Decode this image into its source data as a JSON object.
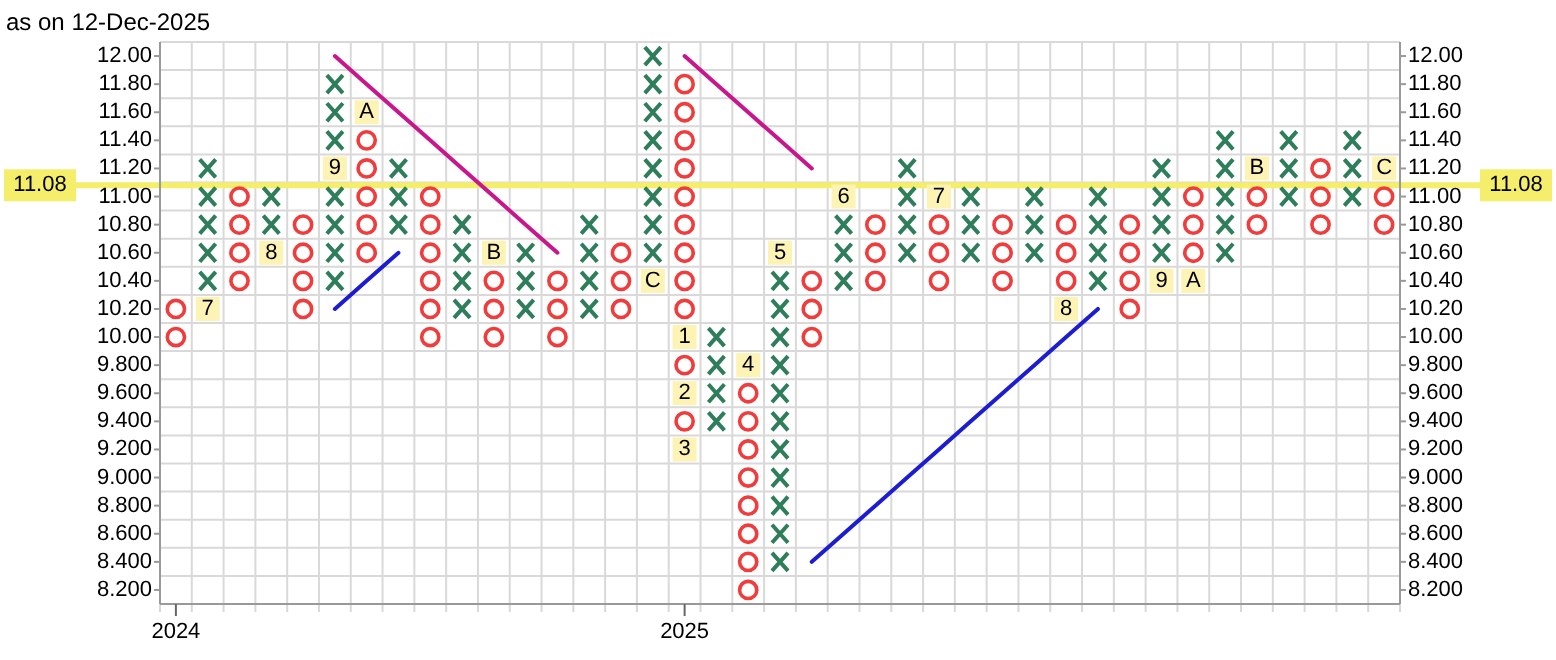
{
  "chart_data": {
    "type": "scatter",
    "title": "as on 12-Dec-2025",
    "categories": [
      "2024",
      null,
      null,
      null,
      null,
      null,
      null,
      null,
      null,
      null,
      null,
      null,
      null,
      null,
      null,
      null,
      "2025",
      null,
      null,
      null,
      null,
      null,
      null,
      null,
      null,
      null,
      null,
      null,
      null,
      null,
      null,
      null,
      null,
      null,
      null,
      null,
      null,
      null,
      null
    ],
    "ylim": [
      8.1,
      12.1
    ],
    "yticks": [
      {
        "value": 8.2,
        "label": "8.200"
      },
      {
        "value": 8.4,
        "label": "8.400"
      },
      {
        "value": 8.6,
        "label": "8.600"
      },
      {
        "value": 8.8,
        "label": "8.800"
      },
      {
        "value": 9.0,
        "label": "9.000"
      },
      {
        "value": 9.2,
        "label": "9.200"
      },
      {
        "value": 9.4,
        "label": "9.400"
      },
      {
        "value": 9.6,
        "label": "9.600"
      },
      {
        "value": 9.8,
        "label": "9.800"
      },
      {
        "value": 10.0,
        "label": "10.00"
      },
      {
        "value": 10.2,
        "label": "10.20"
      },
      {
        "value": 10.4,
        "label": "10.40"
      },
      {
        "value": 10.6,
        "label": "10.60"
      },
      {
        "value": 10.8,
        "label": "10.80"
      },
      {
        "value": 11.0,
        "label": "11.00"
      },
      {
        "value": 11.2,
        "label": "11.20"
      },
      {
        "value": 11.4,
        "label": "11.40"
      },
      {
        "value": 11.6,
        "label": "11.60"
      },
      {
        "value": 11.8,
        "label": "11.80"
      },
      {
        "value": 12.0,
        "label": "12.00"
      }
    ],
    "y2lim": [
      8.1,
      12.1
    ],
    "y2ticks": [
      {
        "value": 8.2,
        "label": "8.200"
      },
      {
        "value": 8.4,
        "label": "8.400"
      },
      {
        "value": 8.6,
        "label": "8.600"
      },
      {
        "value": 8.8,
        "label": "8.800"
      },
      {
        "value": 9.0,
        "label": "9.000"
      },
      {
        "value": 9.2,
        "label": "9.200"
      },
      {
        "value": 9.4,
        "label": "9.400"
      },
      {
        "value": 9.6,
        "label": "9.600"
      },
      {
        "value": 9.8,
        "label": "9.800"
      },
      {
        "value": 10.0,
        "label": "10.00"
      },
      {
        "value": 10.2,
        "label": "10.20"
      },
      {
        "value": 10.4,
        "label": "10.40"
      },
      {
        "value": 10.6,
        "label": "10.60"
      },
      {
        "value": 10.8,
        "label": "10.80"
      },
      {
        "value": 11.0,
        "label": "11.00"
      },
      {
        "value": 11.2,
        "label": "11.20"
      },
      {
        "value": 11.4,
        "label": "11.40"
      },
      {
        "value": 11.6,
        "label": "11.60"
      },
      {
        "value": 11.8,
        "label": "11.80"
      },
      {
        "value": 12.0,
        "label": "12.00"
      }
    ],
    "grid": true,
    "annotations": [
      "7",
      "8",
      "9",
      "A",
      "B",
      "C",
      "1",
      "4",
      "5",
      "6",
      "7",
      "8",
      "9",
      "A",
      "B",
      "C",
      "2",
      "3"
    ],
    "ref_lines": [
      {
        "axis": "y",
        "value": 11.08,
        "label": "11.08",
        "color": "#f5ee6a"
      }
    ],
    "series": [
      {
        "marker": "cross",
        "color": "#2e7d5b",
        "values": [
          null,
          10.4,
          null,
          10.8,
          null,
          10.4,
          null,
          10.8,
          null,
          10.2,
          null,
          10.2,
          null,
          10.2,
          null,
          10.6,
          null,
          9.4,
          null,
          8.4,
          null,
          10.4,
          null,
          10.6,
          null,
          10.6,
          null,
          10.6,
          null,
          10.4,
          null,
          10.6,
          null,
          10.6,
          null,
          11.0,
          null,
          11.0,
          null
        ]
      },
      {
        "marker": "cross",
        "color": "#2e7d5b",
        "values": [
          null,
          10.6,
          null,
          11.0,
          null,
          10.6,
          null,
          11.0,
          null,
          10.4,
          null,
          10.4,
          null,
          10.4,
          null,
          10.8,
          null,
          9.6,
          null,
          8.6,
          null,
          10.6,
          null,
          10.8,
          null,
          10.8,
          null,
          10.8,
          null,
          10.6,
          null,
          10.8,
          null,
          10.8,
          null,
          11.2,
          null,
          11.2,
          null
        ]
      },
      {
        "marker": "cross",
        "color": "#2e7d5b",
        "values": [
          null,
          10.8,
          null,
          null,
          null,
          10.8,
          null,
          11.2,
          null,
          10.6,
          null,
          10.6,
          null,
          10.6,
          null,
          11.0,
          null,
          9.8,
          null,
          8.8,
          null,
          10.8,
          null,
          11.0,
          null,
          11.0,
          null,
          11.0,
          null,
          10.8,
          null,
          11.0,
          null,
          11.0,
          null,
          11.4,
          null,
          11.4,
          null
        ]
      },
      {
        "marker": "cross",
        "color": "#2e7d5b",
        "values": [
          null,
          11.0,
          null,
          null,
          null,
          11.0,
          null,
          null,
          null,
          10.8,
          null,
          null,
          null,
          10.8,
          null,
          11.2,
          null,
          10.0,
          null,
          9.0,
          null,
          null,
          null,
          11.2,
          null,
          null,
          null,
          null,
          null,
          11.0,
          null,
          11.2,
          null,
          11.2,
          null,
          null,
          null,
          null,
          null
        ]
      },
      {
        "marker": "cross",
        "color": "#2e7d5b",
        "values": [
          null,
          11.2,
          null,
          null,
          null,
          11.4,
          null,
          null,
          null,
          null,
          null,
          null,
          null,
          null,
          null,
          11.4,
          null,
          null,
          null,
          9.2,
          null,
          null,
          null,
          null,
          null,
          null,
          null,
          null,
          null,
          null,
          null,
          null,
          null,
          11.4,
          null,
          null,
          null,
          null,
          null
        ]
      },
      {
        "marker": "cross",
        "color": "#2e7d5b",
        "values": [
          null,
          null,
          null,
          null,
          null,
          11.6,
          null,
          null,
          null,
          null,
          null,
          null,
          null,
          null,
          null,
          11.6,
          null,
          null,
          null,
          9.4,
          null,
          null,
          null,
          null,
          null,
          null,
          null,
          null,
          null,
          null,
          null,
          null,
          null,
          null,
          null,
          null,
          null,
          null,
          null
        ]
      },
      {
        "marker": "cross",
        "color": "#2e7d5b",
        "values": [
          null,
          null,
          null,
          null,
          null,
          11.8,
          null,
          null,
          null,
          null,
          null,
          null,
          null,
          null,
          null,
          11.8,
          null,
          null,
          null,
          9.6,
          null,
          null,
          null,
          null,
          null,
          null,
          null,
          null,
          null,
          null,
          null,
          null,
          null,
          null,
          null,
          null,
          null,
          null,
          null
        ]
      },
      {
        "marker": "cross",
        "color": "#2e7d5b",
        "values": [
          null,
          null,
          null,
          null,
          null,
          null,
          null,
          null,
          null,
          null,
          null,
          null,
          null,
          null,
          null,
          12.0,
          null,
          null,
          null,
          9.8,
          null,
          null,
          null,
          null,
          null,
          null,
          null,
          null,
          null,
          null,
          null,
          null,
          null,
          null,
          null,
          null,
          null,
          null,
          null
        ]
      },
      {
        "marker": "cross",
        "color": "#2e7d5b",
        "values": [
          null,
          null,
          null,
          null,
          null,
          null,
          null,
          null,
          null,
          null,
          null,
          null,
          null,
          null,
          null,
          null,
          null,
          null,
          null,
          10.0,
          null,
          null,
          null,
          null,
          null,
          null,
          null,
          null,
          null,
          null,
          null,
          null,
          null,
          null,
          null,
          null,
          null,
          null,
          null
        ]
      },
      {
        "marker": "cross",
        "color": "#2e7d5b",
        "values": [
          null,
          null,
          null,
          null,
          null,
          null,
          null,
          null,
          null,
          null,
          null,
          null,
          null,
          null,
          null,
          null,
          null,
          null,
          null,
          10.2,
          null,
          null,
          null,
          null,
          null,
          null,
          null,
          null,
          null,
          null,
          null,
          null,
          null,
          null,
          null,
          null,
          null,
          null,
          null
        ]
      },
      {
        "marker": "cross",
        "color": "#2e7d5b",
        "values": [
          null,
          null,
          null,
          null,
          null,
          null,
          null,
          null,
          null,
          null,
          null,
          null,
          null,
          null,
          null,
          null,
          null,
          null,
          null,
          10.4,
          null,
          null,
          null,
          null,
          null,
          null,
          null,
          null,
          null,
          null,
          null,
          null,
          null,
          null,
          null,
          null,
          null,
          null,
          null
        ]
      },
      {
        "marker": "circle",
        "color": "#f03c3c",
        "values": [
          10.0,
          null,
          10.4,
          null,
          10.2,
          null,
          10.6,
          null,
          10.0,
          null,
          10.0,
          null,
          10.0,
          null,
          10.2,
          null,
          9.4,
          null,
          8.2,
          null,
          10.0,
          null,
          10.4,
          null,
          10.4,
          null,
          10.4,
          null,
          10.4,
          null,
          10.2,
          null,
          10.6,
          null,
          10.8,
          null,
          10.8,
          null,
          10.8
        ]
      },
      {
        "marker": "circle",
        "color": "#f03c3c",
        "values": [
          10.2,
          null,
          10.6,
          null,
          10.4,
          null,
          10.8,
          null,
          10.2,
          null,
          10.2,
          null,
          10.2,
          null,
          10.4,
          null,
          9.8,
          null,
          8.4,
          null,
          10.2,
          null,
          10.6,
          null,
          10.6,
          null,
          10.6,
          null,
          10.6,
          null,
          10.4,
          null,
          10.8,
          null,
          11.0,
          null,
          11.0,
          null,
          11.0
        ]
      },
      {
        "marker": "circle",
        "color": "#f03c3c",
        "values": [
          null,
          null,
          10.8,
          null,
          10.6,
          null,
          11.0,
          null,
          10.4,
          null,
          10.4,
          null,
          10.4,
          null,
          10.6,
          null,
          10.2,
          null,
          8.6,
          null,
          10.4,
          null,
          10.8,
          null,
          10.8,
          null,
          10.8,
          null,
          10.8,
          null,
          10.6,
          null,
          11.0,
          null,
          null,
          null,
          11.2,
          null,
          null
        ]
      },
      {
        "marker": "circle",
        "color": "#f03c3c",
        "values": [
          null,
          null,
          11.0,
          null,
          10.8,
          null,
          11.2,
          null,
          10.6,
          null,
          null,
          null,
          null,
          null,
          null,
          null,
          10.4,
          null,
          8.8,
          null,
          null,
          null,
          null,
          null,
          null,
          null,
          null,
          null,
          null,
          null,
          10.8,
          null,
          null,
          null,
          null,
          null,
          null,
          null,
          null
        ]
      },
      {
        "marker": "circle",
        "color": "#f03c3c",
        "values": [
          null,
          null,
          null,
          null,
          null,
          null,
          11.4,
          null,
          10.8,
          null,
          null,
          null,
          null,
          null,
          null,
          null,
          10.6,
          null,
          9.0,
          null,
          null,
          null,
          null,
          null,
          null,
          null,
          null,
          null,
          null,
          null,
          null,
          null,
          null,
          null,
          null,
          null,
          null,
          null,
          null
        ]
      },
      {
        "marker": "circle",
        "color": "#f03c3c",
        "values": [
          null,
          null,
          null,
          null,
          null,
          null,
          null,
          null,
          11.0,
          null,
          null,
          null,
          null,
          null,
          null,
          null,
          10.8,
          null,
          9.2,
          null,
          null,
          null,
          null,
          null,
          null,
          null,
          null,
          null,
          null,
          null,
          null,
          null,
          null,
          null,
          null,
          null,
          null,
          null,
          null
        ]
      },
      {
        "marker": "circle",
        "color": "#f03c3c",
        "values": [
          null,
          null,
          null,
          null,
          null,
          null,
          null,
          null,
          null,
          null,
          null,
          null,
          null,
          null,
          null,
          null,
          11.0,
          null,
          9.4,
          null,
          null,
          null,
          null,
          null,
          null,
          null,
          null,
          null,
          null,
          null,
          null,
          null,
          null,
          null,
          null,
          null,
          null,
          null,
          null
        ]
      },
      {
        "marker": "circle",
        "color": "#f03c3c",
        "values": [
          null,
          null,
          null,
          null,
          null,
          null,
          null,
          null,
          null,
          null,
          null,
          null,
          null,
          null,
          null,
          null,
          11.2,
          null,
          9.6,
          null,
          null,
          null,
          null,
          null,
          null,
          null,
          null,
          null,
          null,
          null,
          null,
          null,
          null,
          null,
          null,
          null,
          null,
          null,
          null
        ]
      },
      {
        "marker": "circle",
        "color": "#f03c3c",
        "values": [
          null,
          null,
          null,
          null,
          null,
          null,
          null,
          null,
          null,
          null,
          null,
          null,
          null,
          null,
          null,
          null,
          11.4,
          null,
          null,
          null,
          null,
          null,
          null,
          null,
          null,
          null,
          null,
          null,
          null,
          null,
          null,
          null,
          null,
          null,
          null,
          null,
          null,
          null,
          null
        ]
      },
      {
        "marker": "circle",
        "color": "#f03c3c",
        "values": [
          null,
          null,
          null,
          null,
          null,
          null,
          null,
          null,
          null,
          null,
          null,
          null,
          null,
          null,
          null,
          null,
          11.6,
          null,
          null,
          null,
          null,
          null,
          null,
          null,
          null,
          null,
          null,
          null,
          null,
          null,
          null,
          null,
          null,
          null,
          null,
          null,
          null,
          null,
          null
        ]
      },
      {
        "marker": "circle",
        "color": "#f03c3c",
        "values": [
          null,
          null,
          null,
          null,
          null,
          null,
          null,
          null,
          null,
          null,
          null,
          null,
          null,
          null,
          null,
          null,
          11.8,
          null,
          null,
          null,
          null,
          null,
          null,
          null,
          null,
          null,
          null,
          null,
          null,
          null,
          null,
          null,
          null,
          null,
          null,
          null,
          null,
          null,
          null
        ]
      },
      {
        "marker": "square",
        "color": "#fdf3b4",
        "values": [
          null,
          10.2,
          null,
          10.6,
          null,
          11.2,
          11.6,
          null,
          null,
          null,
          10.6,
          null,
          null,
          null,
          null,
          10.4,
          10.0,
          null,
          9.8,
          10.6,
          null,
          11.0,
          null,
          null,
          11.0,
          null,
          null,
          null,
          10.2,
          null,
          null,
          10.4,
          10.4,
          null,
          11.2,
          null,
          null,
          null,
          11.2
        ]
      },
      {
        "marker": "square",
        "color": "#fdf3b4",
        "values": [
          null,
          null,
          null,
          null,
          null,
          null,
          null,
          null,
          null,
          null,
          null,
          null,
          null,
          null,
          null,
          null,
          9.6,
          null,
          null,
          null,
          null,
          null,
          null,
          null,
          null,
          null,
          null,
          null,
          null,
          null,
          null,
          null,
          null,
          null,
          null,
          null,
          null,
          null,
          null
        ]
      },
      {
        "marker": "square",
        "color": "#fdf3b4",
        "values": [
          null,
          null,
          null,
          null,
          null,
          null,
          null,
          null,
          null,
          null,
          null,
          null,
          null,
          null,
          null,
          null,
          9.2,
          null,
          null,
          null,
          null,
          null,
          null,
          null,
          null,
          null,
          null,
          null,
          null,
          null,
          null,
          null,
          null,
          null,
          null,
          null,
          null,
          null,
          null
        ]
      },
      {
        "type": "line",
        "color": "#c8168c",
        "values": [
          null,
          null,
          null,
          null,
          null,
          12.0,
          11.8,
          11.6,
          11.4,
          11.2,
          11.0,
          10.8,
          10.6,
          null,
          null,
          null,
          null,
          null,
          null,
          null,
          null,
          null,
          null,
          null,
          null,
          null,
          null,
          null,
          null,
          null,
          null,
          null,
          null,
          null,
          null,
          null,
          null,
          null,
          null
        ]
      },
      {
        "type": "line",
        "color": "#c8168c",
        "values": [
          null,
          null,
          null,
          null,
          null,
          null,
          null,
          null,
          null,
          null,
          null,
          null,
          null,
          null,
          null,
          null,
          12.0,
          11.8,
          11.6,
          11.4,
          11.2,
          null,
          null,
          null,
          null,
          null,
          null,
          null,
          null,
          null,
          null,
          null,
          null,
          null,
          null,
          null,
          null,
          null,
          null
        ]
      },
      {
        "type": "line",
        "color": "#1c1cd0",
        "values": [
          null,
          null,
          null,
          null,
          null,
          10.2,
          10.4,
          10.6,
          null,
          null,
          null,
          null,
          null,
          null,
          null,
          null,
          null,
          null,
          null,
          null,
          null,
          null,
          null,
          null,
          null,
          null,
          null,
          null,
          null,
          null,
          null,
          null,
          null,
          null,
          null,
          null,
          null,
          null,
          null
        ]
      },
      {
        "type": "line",
        "color": "#1c1cd0",
        "values": [
          null,
          null,
          null,
          null,
          null,
          null,
          null,
          null,
          null,
          null,
          null,
          null,
          null,
          null,
          null,
          null,
          null,
          null,
          null,
          null,
          8.4,
          8.6,
          8.8,
          9.0,
          9.2,
          9.4,
          9.6,
          9.8,
          10.0,
          10.2,
          null,
          null,
          null,
          null,
          null,
          null,
          null,
          null,
          null
        ]
      }
    ]
  }
}
